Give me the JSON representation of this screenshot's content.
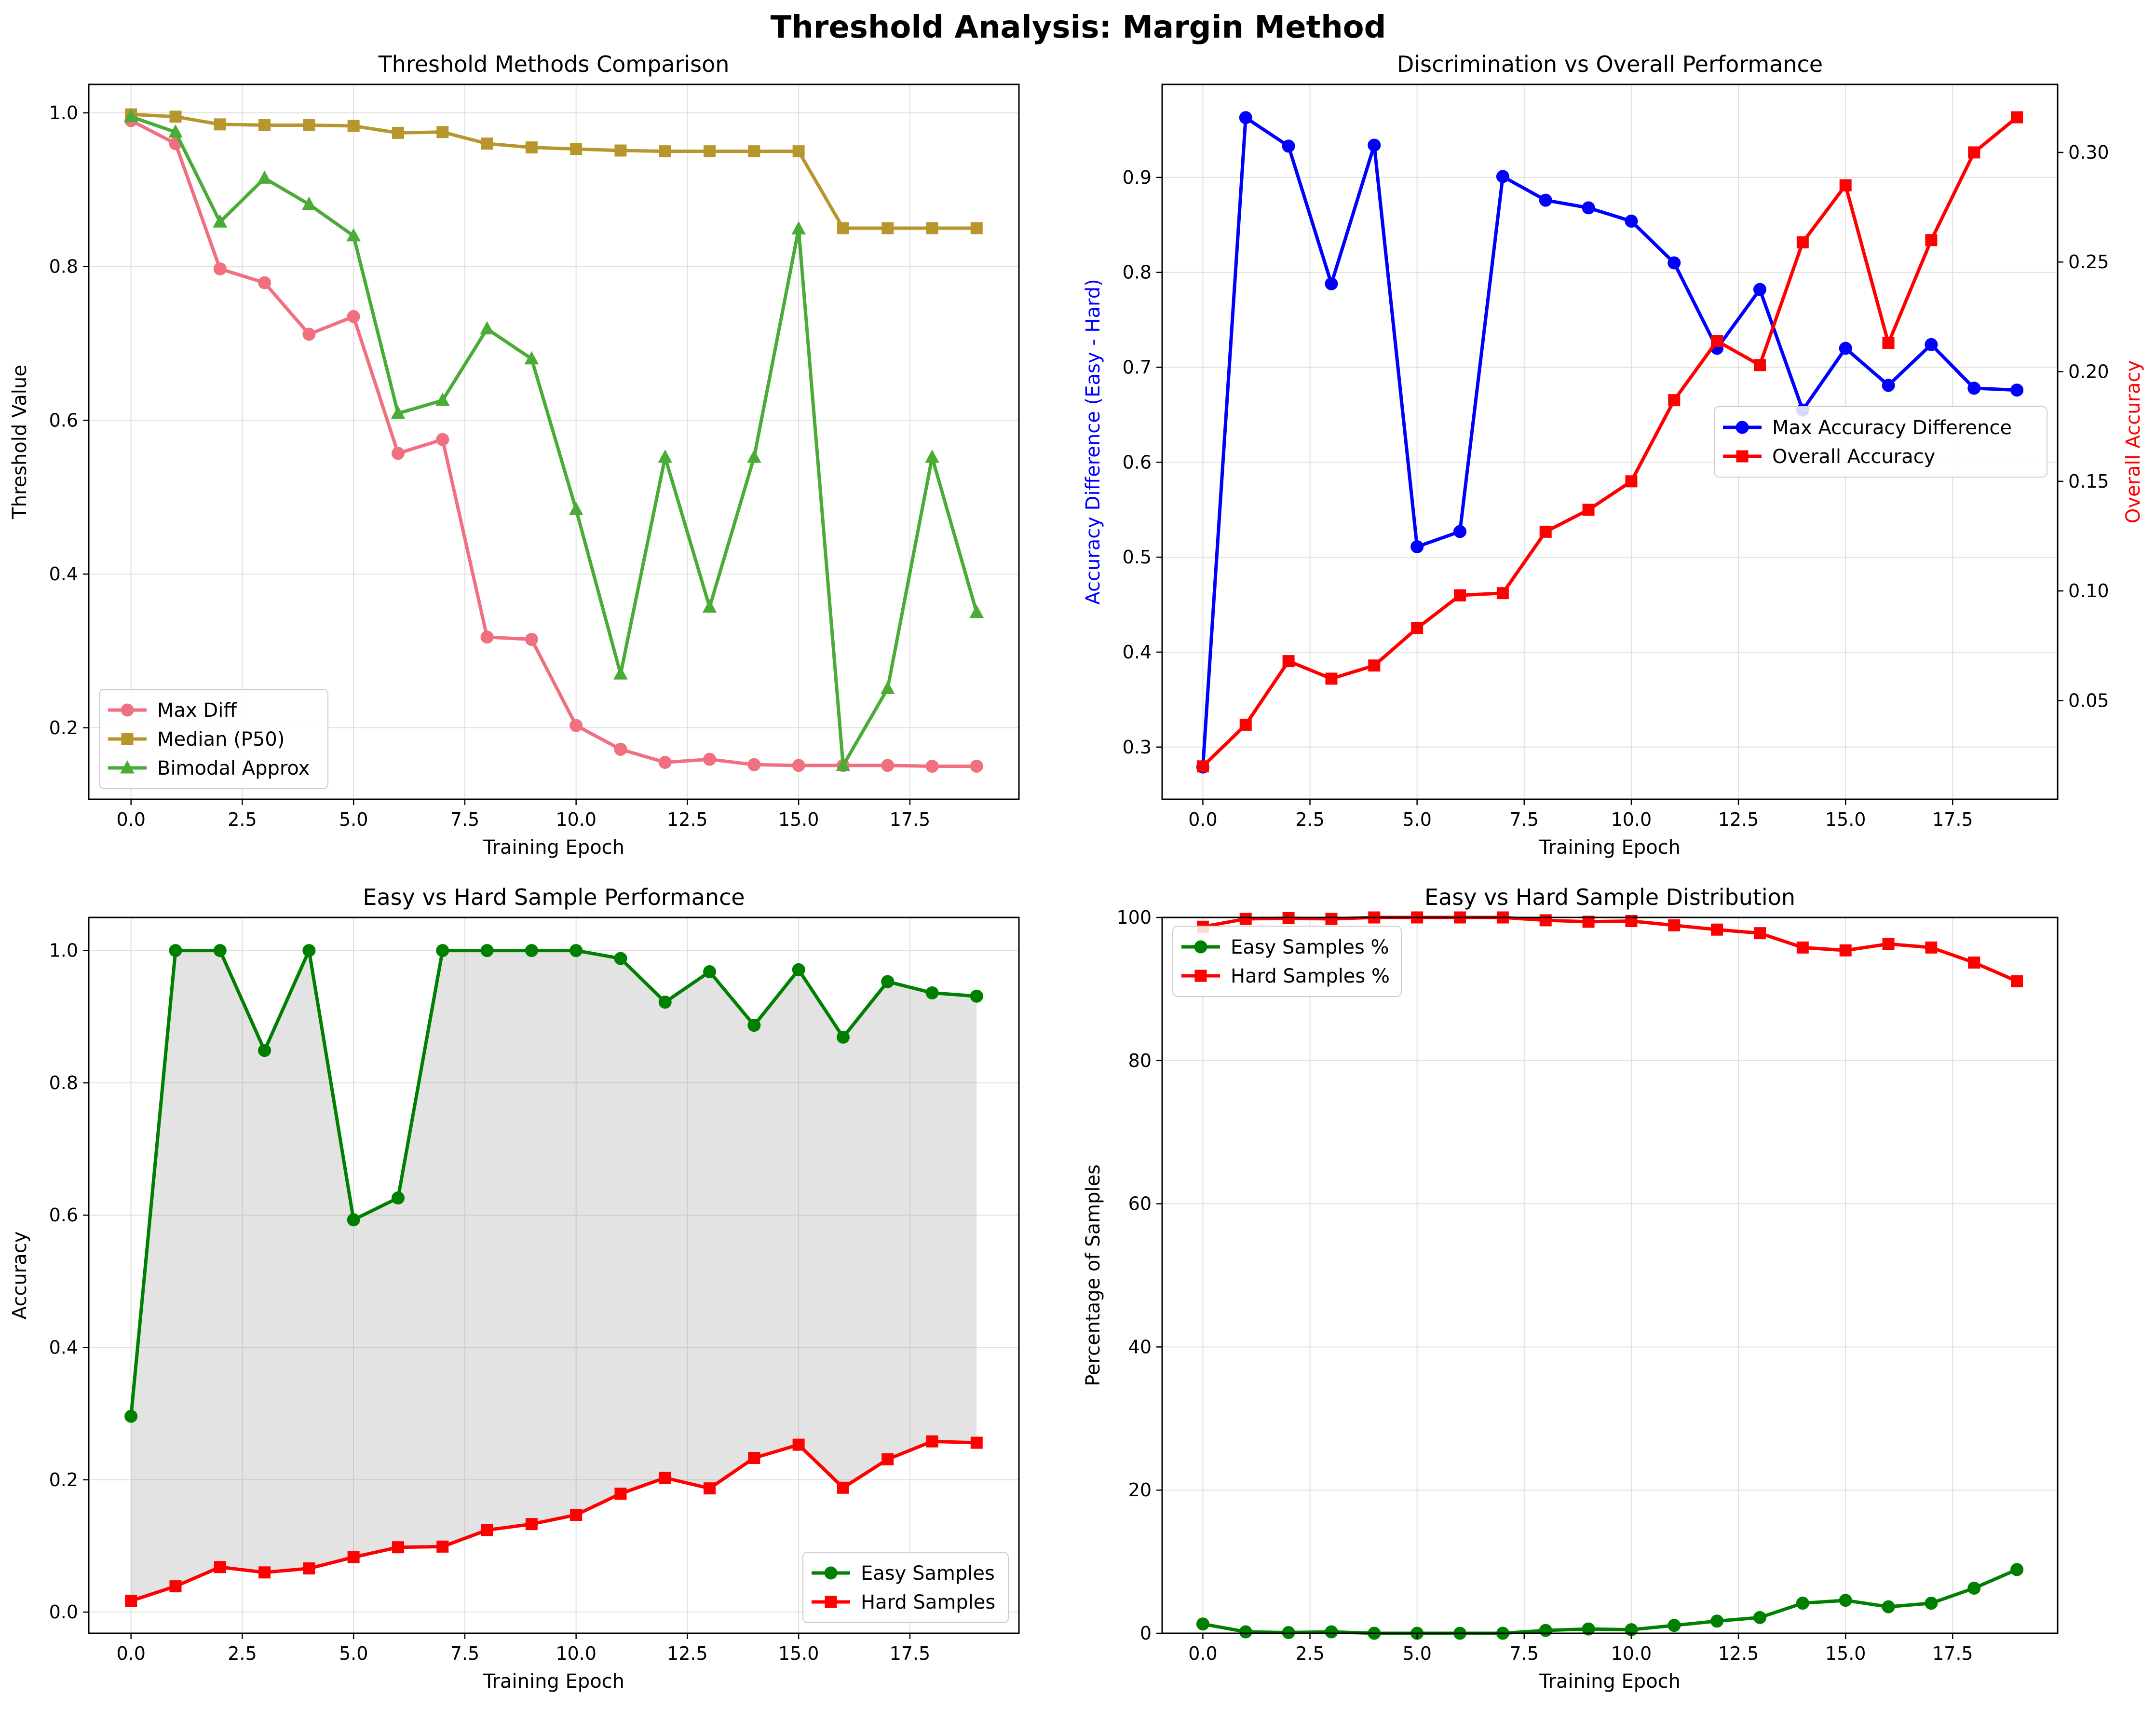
{
  "figure_title": "Threshold Analysis: Margin Method",
  "chart_data": [
    {
      "type": "line",
      "title": "Threshold Methods Comparison",
      "xlabel": "Training Epoch",
      "ylabel": "Threshold Value",
      "xlim": [
        -0.95,
        19.95
      ],
      "ylim": [
        0.107,
        1.037
      ],
      "xticks": [
        0,
        2.5,
        5,
        7.5,
        10,
        12.5,
        15,
        17.5
      ],
      "xtick_labels": [
        "0.0",
        "2.5",
        "5.0",
        "7.5",
        "10.0",
        "12.5",
        "15.0",
        "17.5"
      ],
      "yticks": [
        0.2,
        0.4,
        0.6,
        0.8,
        1.0
      ],
      "ytick_labels": [
        "0.2",
        "0.4",
        "0.6",
        "0.8",
        "1.0"
      ],
      "grid": true,
      "legend_position": "lower-left",
      "x": [
        0,
        1,
        2,
        3,
        4,
        5,
        6,
        7,
        8,
        9,
        10,
        11,
        12,
        13,
        14,
        15,
        16,
        17,
        18,
        19
      ],
      "series": [
        {
          "name": "Max Diff",
          "color": "#f0707f",
          "marker": "circle",
          "values": [
            0.99,
            0.96,
            0.797,
            0.779,
            0.712,
            0.735,
            0.557,
            0.575,
            0.318,
            0.315,
            0.203,
            0.172,
            0.155,
            0.159,
            0.152,
            0.151,
            0.151,
            0.151,
            0.15,
            0.15
          ]
        },
        {
          "name": "Median (P50)",
          "color": "#b8962e",
          "marker": "square",
          "values": [
            0.998,
            0.995,
            0.985,
            0.984,
            0.984,
            0.983,
            0.974,
            0.975,
            0.96,
            0.955,
            0.953,
            0.951,
            0.95,
            0.95,
            0.95,
            0.95,
            0.85,
            0.85,
            0.85,
            0.85
          ]
        },
        {
          "name": "Bimodal Approx",
          "color": "#4aac36",
          "marker": "triangle",
          "values": [
            0.995,
            0.975,
            0.858,
            0.915,
            0.881,
            0.84,
            0.609,
            0.626,
            0.719,
            0.68,
            0.484,
            0.27,
            0.552,
            0.357,
            0.552,
            0.849,
            0.151,
            0.251,
            0.552,
            0.35
          ]
        }
      ]
    },
    {
      "type": "line",
      "title": "Discrimination vs Overall Performance",
      "xlabel": "Training Epoch",
      "ylabel": "Accuracy Difference (Easy - Hard)",
      "ylabel_color": "#0000ff",
      "ylabel_right": "Overall Accuracy",
      "ylabel_right_color": "#ff0000",
      "xlim": [
        -0.95,
        19.95
      ],
      "ylim": [
        0.245,
        0.998
      ],
      "ylim_right": [
        0.005,
        0.331
      ],
      "xticks": [
        0,
        2.5,
        5,
        7.5,
        10,
        12.5,
        15,
        17.5
      ],
      "xtick_labels": [
        "0.0",
        "2.5",
        "5.0",
        "7.5",
        "10.0",
        "12.5",
        "15.0",
        "17.5"
      ],
      "yticks": [
        0.3,
        0.4,
        0.5,
        0.6,
        0.7,
        0.8,
        0.9
      ],
      "ytick_labels": [
        "0.3",
        "0.4",
        "0.5",
        "0.6",
        "0.7",
        "0.8",
        "0.9"
      ],
      "yticks_right": [
        0.05,
        0.1,
        0.15,
        0.2,
        0.25,
        0.3
      ],
      "ytick_labels_right": [
        "0.05",
        "0.10",
        "0.15",
        "0.20",
        "0.25",
        "0.30"
      ],
      "grid": true,
      "legend_position": "center-right",
      "x": [
        0,
        1,
        2,
        3,
        4,
        5,
        6,
        7,
        8,
        9,
        10,
        11,
        12,
        13,
        14,
        15,
        16,
        17,
        18,
        19
      ],
      "series": [
        {
          "name": "Max Accuracy Difference",
          "color": "#0000ff",
          "marker": "circle",
          "axis": "left",
          "values": [
            0.279,
            0.963,
            0.933,
            0.788,
            0.934,
            0.511,
            0.527,
            0.901,
            0.876,
            0.868,
            0.854,
            0.81,
            0.72,
            0.782,
            0.655,
            0.72,
            0.681,
            0.724,
            0.678,
            0.676
          ]
        },
        {
          "name": "Overall Accuracy",
          "color": "#ff0000",
          "marker": "square",
          "axis": "right",
          "values": [
            0.02,
            0.039,
            0.068,
            0.06,
            0.066,
            0.083,
            0.098,
            0.099,
            0.127,
            0.137,
            0.15,
            0.187,
            0.214,
            0.203,
            0.259,
            0.285,
            0.213,
            0.26,
            0.3,
            0.316
          ]
        }
      ]
    },
    {
      "type": "line",
      "title": "Easy vs Hard Sample Performance",
      "xlabel": "Training Epoch",
      "ylabel": "Accuracy",
      "xlim": [
        -0.95,
        19.95
      ],
      "ylim": [
        -0.032,
        1.05
      ],
      "xticks": [
        0,
        2.5,
        5,
        7.5,
        10,
        12.5,
        15,
        17.5
      ],
      "xtick_labels": [
        "0.0",
        "2.5",
        "5.0",
        "7.5",
        "10.0",
        "12.5",
        "15.0",
        "17.5"
      ],
      "yticks": [
        0.0,
        0.2,
        0.4,
        0.6,
        0.8,
        1.0
      ],
      "ytick_labels": [
        "0.0",
        "0.2",
        "0.4",
        "0.6",
        "0.8",
        "1.0"
      ],
      "grid": true,
      "fill_between": true,
      "legend_position": "lower-right",
      "x": [
        0,
        1,
        2,
        3,
        4,
        5,
        6,
        7,
        8,
        9,
        10,
        11,
        12,
        13,
        14,
        15,
        16,
        17,
        18,
        19
      ],
      "series": [
        {
          "name": "Easy Samples",
          "color": "#008000",
          "marker": "circle",
          "values": [
            0.296,
            1.0,
            1.0,
            0.849,
            1.0,
            0.593,
            0.626,
            1.0,
            1.0,
            1.0,
            1.0,
            0.988,
            0.922,
            0.968,
            0.887,
            0.971,
            0.869,
            0.953,
            0.936,
            0.931
          ]
        },
        {
          "name": "Hard Samples",
          "color": "#ff0000",
          "marker": "square",
          "values": [
            0.017,
            0.039,
            0.068,
            0.06,
            0.066,
            0.083,
            0.098,
            0.099,
            0.124,
            0.133,
            0.147,
            0.179,
            0.203,
            0.187,
            0.233,
            0.253,
            0.188,
            0.231,
            0.258,
            0.256
          ]
        }
      ]
    },
    {
      "type": "line",
      "title": "Easy vs Hard Sample Distribution",
      "xlabel": "Training Epoch",
      "ylabel": "Percentage of Samples",
      "xlim": [
        -0.95,
        19.95
      ],
      "ylim": [
        0,
        100
      ],
      "xticks": [
        0,
        2.5,
        5,
        7.5,
        10,
        12.5,
        15,
        17.5
      ],
      "xtick_labels": [
        "0.0",
        "2.5",
        "5.0",
        "7.5",
        "10.0",
        "12.5",
        "15.0",
        "17.5"
      ],
      "yticks": [
        0,
        20,
        40,
        60,
        80,
        100
      ],
      "ytick_labels": [
        "0",
        "20",
        "40",
        "60",
        "80",
        "100"
      ],
      "grid": true,
      "legend_position": "top-left",
      "x": [
        0,
        1,
        2,
        3,
        4,
        5,
        6,
        7,
        8,
        9,
        10,
        11,
        12,
        13,
        14,
        15,
        16,
        17,
        18,
        19
      ],
      "series": [
        {
          "name": "Easy Samples %",
          "color": "#008000",
          "marker": "circle",
          "values": [
            1.3,
            0.2,
            0.1,
            0.2,
            0.0,
            0.0,
            0.0,
            0.0,
            0.4,
            0.6,
            0.5,
            1.1,
            1.7,
            2.2,
            4.2,
            4.6,
            3.7,
            4.2,
            6.3,
            8.9
          ]
        },
        {
          "name": "Hard Samples %",
          "color": "#ff0000",
          "marker": "square",
          "values": [
            98.7,
            99.8,
            99.9,
            99.8,
            100.0,
            100.0,
            100.0,
            100.0,
            99.6,
            99.4,
            99.5,
            98.9,
            98.3,
            97.8,
            95.8,
            95.4,
            96.3,
            95.8,
            93.7,
            91.1
          ]
        }
      ]
    }
  ]
}
